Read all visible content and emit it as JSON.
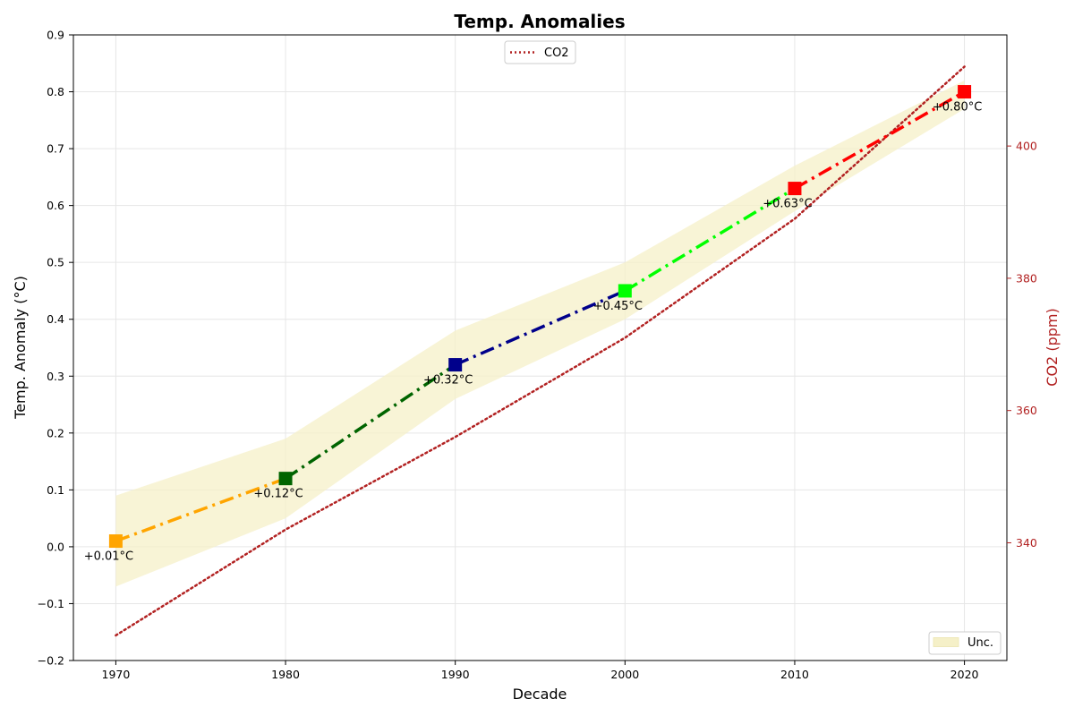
{
  "chart_data": {
    "type": "line",
    "title": "Temp. Anomalies",
    "xlabel": "Decade",
    "ylabel": "Temp. Anomaly (°C)",
    "y2label": "CO2 (ppm)",
    "xlim": [
      1967.5,
      2022.5
    ],
    "ylim": [
      -0.2,
      0.9
    ],
    "y2lim": [
      322.2,
      416.8
    ],
    "xticks": [
      "1970",
      "1980",
      "1990",
      "2000",
      "2010",
      "2020"
    ],
    "yticks": [
      "−0.2",
      "−0.1",
      "0.0",
      "0.1",
      "0.2",
      "0.3",
      "0.4",
      "0.5",
      "0.6",
      "0.7",
      "0.8",
      "0.9"
    ],
    "y2ticks": [
      "340",
      "360",
      "380",
      "400"
    ],
    "grid": true,
    "x": [
      1970,
      1980,
      1990,
      2000,
      2010,
      2020
    ],
    "series": [
      {
        "values": [
          0.01,
          0.12,
          0.32,
          0.45,
          0.63,
          0.8
        ],
        "labels": [
          "+0.01°C",
          "+0.12°C",
          "+0.32°C",
          "+0.45°C",
          "+0.63°C",
          "+0.80°C"
        ],
        "segment_colors": [
          "#ffa500",
          "#006400",
          "#00008b",
          "#00ff00",
          "#ff0000"
        ],
        "marker_colors": [
          "#ffa500",
          "#006400",
          "#00008b",
          "#00ff00",
          "#ff0000",
          "#ff0000"
        ],
        "style": "dash-dot"
      },
      {
        "name": "CO2",
        "axis": "right",
        "color": "#b22222",
        "style": "dotted",
        "values": [
          326,
          342,
          356,
          371,
          389,
          412
        ]
      }
    ],
    "band": {
      "name": "Unc.",
      "color": "#f5f0c8",
      "lower": [
        -0.07,
        0.05,
        0.26,
        0.4,
        0.59,
        0.77
      ],
      "upper": [
        0.09,
        0.19,
        0.38,
        0.5,
        0.67,
        0.82
      ]
    },
    "legends": [
      {
        "placement": "top-center",
        "entries": [
          "CO2"
        ]
      },
      {
        "placement": "bottom-right",
        "entries": [
          "Unc."
        ]
      }
    ]
  }
}
